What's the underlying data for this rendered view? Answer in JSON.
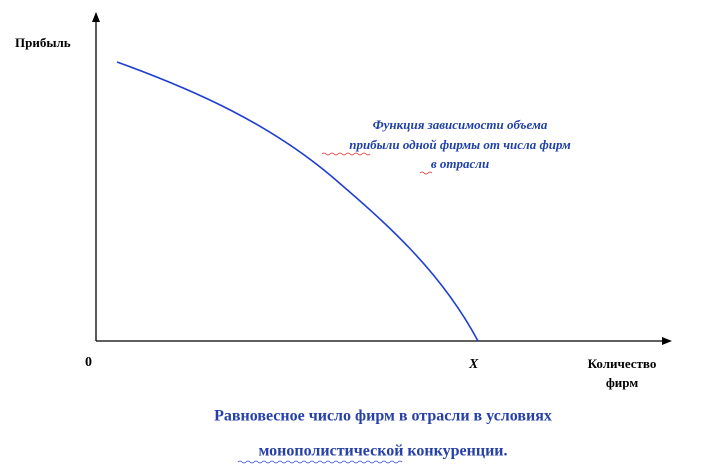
{
  "axes": {
    "y_label": "Прибыль",
    "origin": "0",
    "x_mark": "X",
    "x_label": [
      "Количество",
      "фирм"
    ]
  },
  "annotation": [
    "Функция зависимости объема",
    "прибыли одной фирмы от числа фирм",
    "в отрасли"
  ],
  "caption": [
    "Равновесное число фирм в отрасли в условиях",
    "монополистической конкуренции."
  ]
}
